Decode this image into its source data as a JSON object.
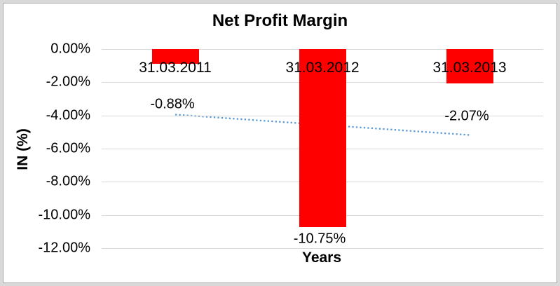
{
  "frame": {
    "outer_color": "#d9d9d9",
    "border_color": "#ababab",
    "background": "#ffffff"
  },
  "chart_data": {
    "type": "bar",
    "title": "Net Profit Margin",
    "xlabel": "Years",
    "ylabel": "IN (%)",
    "categories": [
      "31.03.2011",
      "31.03.2012",
      "31.03.2013"
    ],
    "series": [
      {
        "name": "Net Profit Margin",
        "values": [
          -0.88,
          -10.75,
          -2.07
        ]
      }
    ],
    "value_labels": [
      "-0.88%",
      "-10.75%",
      "-2.07%"
    ],
    "value_label_y_pct": [
      -3.34,
      -11.45,
      -4.06
    ],
    "y_ticks": [
      {
        "label": "0.00%",
        "value": 0
      },
      {
        "label": "-2.00%",
        "value": -2
      },
      {
        "label": "-4.00%",
        "value": -4
      },
      {
        "label": "-6.00%",
        "value": -6
      },
      {
        "label": "-8.00%",
        "value": -8
      },
      {
        "label": "-10.00%",
        "value": -10
      },
      {
        "label": "-12.00%",
        "value": -12
      }
    ],
    "ylim": [
      0,
      -12
    ],
    "grid": true,
    "legend_position": "none",
    "colors": {
      "bar": "#ff0000",
      "gridline": "#d9d9d9",
      "trendline": "#5b9bd5",
      "text": "#000000"
    },
    "trendline": {
      "type": "linear",
      "style": "dotted",
      "endpoints_pct": [
        -3.95,
        -5.18
      ]
    }
  }
}
